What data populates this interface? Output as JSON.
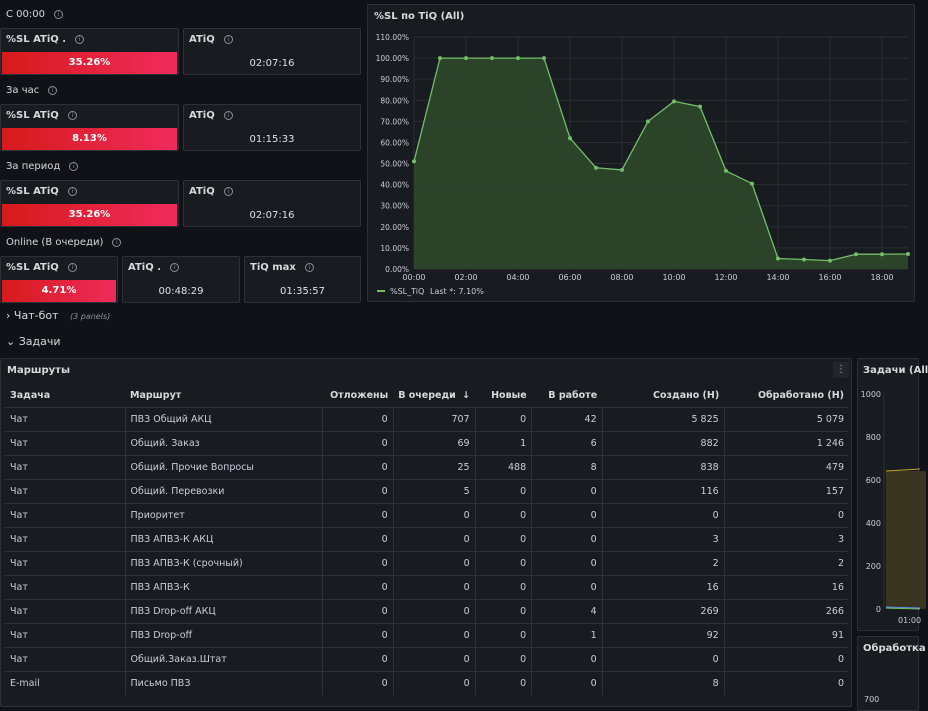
{
  "sections": {
    "since_midnight": "С 00:00",
    "per_hour": "За час",
    "per_period": "За период",
    "online": "Online (В очереди)"
  },
  "stats": {
    "r1": {
      "sl_label": "%SL ATiQ .",
      "sl_value": "35.26%",
      "atiq_label": "ATiQ",
      "atiq_value": "02:07:16"
    },
    "r2": {
      "sl_label": "%SL ATiQ",
      "sl_value": "8.13%",
      "atiq_label": "ATiQ",
      "atiq_value": "01:15:33"
    },
    "r3": {
      "sl_label": "%SL ATiQ",
      "sl_value": "35.26%",
      "atiq_label": "ATiQ",
      "atiq_value": "02:07:16"
    },
    "r4": {
      "sl_label": "%SL ATiQ",
      "sl_value": "4.71%",
      "atiq_label": "ATiQ .",
      "atiq_value": "00:48:29",
      "tiq_label": "TiQ max",
      "tiq_value": "01:35:57"
    }
  },
  "chart_panel": {
    "title": "%SL по TiQ (All)"
  },
  "chart_data": {
    "type": "area",
    "title": "%SL по TiQ (All)",
    "x": [
      "00:00",
      "01:00",
      "02:00",
      "03:00",
      "04:00",
      "05:00",
      "06:00",
      "07:00",
      "08:00",
      "09:00",
      "10:00",
      "11:00",
      "12:00",
      "13:00",
      "14:00",
      "15:00",
      "16:00",
      "17:00",
      "18:00",
      "19:00"
    ],
    "x_ticks": [
      "00:00",
      "02:00",
      "04:00",
      "06:00",
      "08:00",
      "10:00",
      "12:00",
      "14:00",
      "16:00",
      "18:00"
    ],
    "y_ticks": [
      "0.00%",
      "10.00%",
      "20.00%",
      "30.00%",
      "40.00%",
      "50.00%",
      "60.00%",
      "70.00%",
      "80.00%",
      "90.00%",
      "100.00%",
      "110.00%"
    ],
    "ylim": [
      0,
      110
    ],
    "grid": true,
    "legend_position": "bottom-left",
    "series": [
      {
        "name": "%SL_TiQ",
        "values": [
          51,
          100,
          100,
          100,
          100,
          100,
          62,
          48,
          47,
          70,
          79.5,
          77,
          46.5,
          40.5,
          5,
          4.5,
          4,
          7,
          7,
          7.1
        ]
      }
    ],
    "legend_text": "%SL_TiQ",
    "legend_last": "Last *: 7.10%",
    "color": "#73bf69"
  },
  "rows": {
    "chatbot": {
      "label": "Чат-бот",
      "count": "(3 panels)"
    },
    "tasks": {
      "label": "Задачи"
    }
  },
  "table_panel": {
    "title": "Маршруты",
    "menu_icon": "more-vertical-icon",
    "columns": [
      "Задача",
      "Маршрут",
      "Отложены",
      "В очереди",
      "Новые",
      "В работе",
      "Создано (Н)",
      "Обработано (Н)"
    ],
    "sort_icon": "arrow-down-icon",
    "rows": [
      [
        "Чат",
        "ПВЗ Общий АКЦ",
        "0",
        "707",
        "0",
        "42",
        "5 825",
        "5 079"
      ],
      [
        "Чат",
        "Общий. Заказ",
        "0",
        "69",
        "1",
        "6",
        "882",
        "1 246"
      ],
      [
        "Чат",
        "Общий. Прочие Вопросы",
        "0",
        "25",
        "488",
        "8",
        "838",
        "479"
      ],
      [
        "Чат",
        "Общий. Перевозки",
        "0",
        "5",
        "0",
        "0",
        "116",
        "157"
      ],
      [
        "Чат",
        "Приоритет",
        "0",
        "0",
        "0",
        "0",
        "0",
        "0"
      ],
      [
        "Чат",
        "ПВЗ АПВЗ-К АКЦ",
        "0",
        "0",
        "0",
        "0",
        "3",
        "3"
      ],
      [
        "Чат",
        "ПВЗ АПВЗ-К (срочный)",
        "0",
        "0",
        "0",
        "0",
        "2",
        "2"
      ],
      [
        "Чат",
        "ПВЗ АПВЗ-К",
        "0",
        "0",
        "0",
        "0",
        "16",
        "16"
      ],
      [
        "Чат",
        "ПВЗ Drop-off АКЦ",
        "0",
        "0",
        "0",
        "4",
        "269",
        "266"
      ],
      [
        "Чат",
        "ПВЗ Drop-off",
        "0",
        "0",
        "0",
        "1",
        "92",
        "91"
      ],
      [
        "Чат",
        "Общий.Заказ.Штат",
        "0",
        "0",
        "0",
        "0",
        "0",
        "0"
      ],
      [
        "E-mail",
        "Письмо ПВЗ",
        "0",
        "0",
        "0",
        "0",
        "8",
        "0"
      ]
    ]
  },
  "right_panel": {
    "title": "Задачи (All",
    "y_ticks": [
      "1000",
      "800",
      "600",
      "400",
      "200",
      "0"
    ],
    "x_tick": "01:00"
  },
  "right_panel2": {
    "title": "Обработка",
    "y_tick": "700"
  }
}
